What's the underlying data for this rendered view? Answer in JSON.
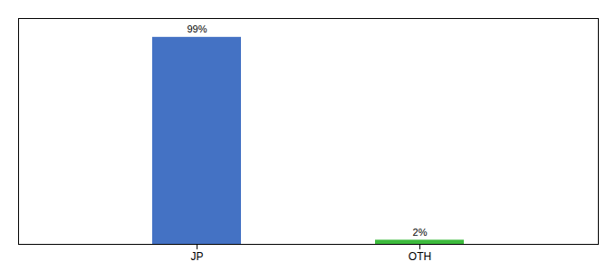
{
  "chart_data": {
    "type": "bar",
    "categories": [
      "JP",
      "OTH"
    ],
    "values": [
      99,
      2
    ],
    "value_labels": [
      "99%",
      "2%"
    ],
    "colors": [
      "#4472c4",
      "#3dbb3d"
    ],
    "ylim": [
      0,
      108
    ],
    "data_labels": true,
    "tick_labels": "x",
    "grid": false
  }
}
